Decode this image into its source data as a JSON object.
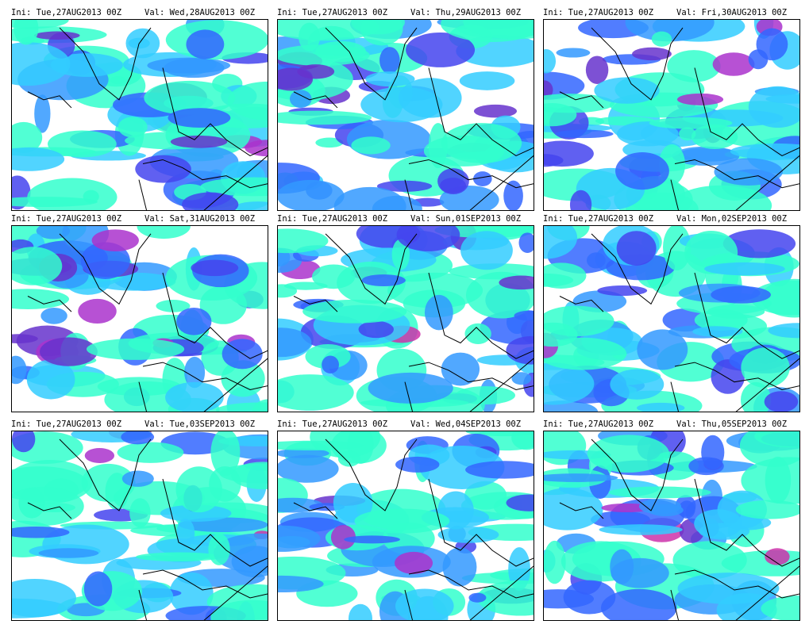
{
  "panels": [
    {
      "ini": "Ini: Tue,27AUG2013 00Z",
      "valid": "Val: Wed,28AUG2013 00Z"
    },
    {
      "ini": "Ini: Tue,27AUG2013 00Z",
      "valid": "Val: Thu,29AUG2013 00Z"
    },
    {
      "ini": "Ini: Tue,27AUG2013 00Z",
      "valid": "Val: Fri,30AUG2013 00Z"
    },
    {
      "ini": "Ini: Tue,27AUG2013 00Z",
      "valid": "Val: Sat,31AUG2013 00Z"
    },
    {
      "ini": "Ini: Tue,27AUG2013 00Z",
      "valid": "Val: Sun,01SEP2013 00Z"
    },
    {
      "ini": "Ini: Tue,27AUG2013 00Z",
      "valid": "Val: Mon,02SEP2013 00Z"
    },
    {
      "ini": "Ini: Tue,27AUG2013 00Z",
      "valid": "Val: Tue,03SEP2013 00Z"
    },
    {
      "ini": "Ini: Tue,27AUG2013 00Z",
      "valid": "Val: Wed,04SEP2013 00Z"
    },
    {
      "ini": "Ini: Tue,27AUG2013 00Z",
      "valid": "Val: Thu,05SEP2013 00Z"
    }
  ]
}
